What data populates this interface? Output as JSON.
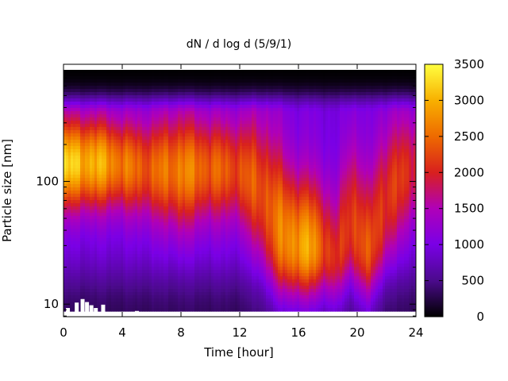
{
  "chart_data": {
    "type": "heatmap",
    "title": "dN / d log d (5/9/1)",
    "xlabel": "Time [hour]",
    "ylabel": "Particle size [nm]",
    "xlim": [
      0,
      24
    ],
    "ylim_nm": [
      7.9,
      900
    ],
    "y_scale": "log",
    "x_ticks": [
      "0",
      "4",
      "8",
      "12",
      "16",
      "20",
      "24"
    ],
    "x_tick_values": [
      0,
      4,
      8,
      12,
      16,
      20,
      24
    ],
    "y_ticks": [
      "10",
      "100"
    ],
    "y_tick_values": [
      10,
      100
    ],
    "colorbar": {
      "range": [
        0,
        3500
      ],
      "ticks": [
        "0",
        "500",
        "1000",
        "1500",
        "2000",
        "2500",
        "3000",
        "3500"
      ],
      "tick_values": [
        0,
        500,
        1000,
        1500,
        2000,
        2500,
        3000,
        3500
      ]
    },
    "colormap": [
      "#000000",
      "#4b0a8c",
      "#7a00e6",
      "#b000b8",
      "#d8201e",
      "#ee6a00",
      "#f8b000",
      "#ffff40"
    ],
    "grid": false,
    "legend": "colorbar-right",
    "profile_times_hour": [
      0,
      0.5,
      1,
      1.5,
      2,
      3,
      4,
      5,
      6,
      7,
      8,
      9,
      10,
      11,
      12,
      13,
      13.8,
      14.5,
      15.3,
      16,
      16.8,
      17.5,
      18.1,
      18.5,
      19,
      19.6,
      20.2,
      20.8,
      21.5,
      22.2,
      23,
      24
    ],
    "profiles": [
      {
        "d_nm": 140,
        "width_dec": 0.25,
        "peak": 3100,
        "bg": 950,
        "low_lift": 0
      },
      {
        "d_nm": 140,
        "width_dec": 0.26,
        "peak": 3150,
        "bg": 950,
        "low_lift": 0
      },
      {
        "d_nm": 140,
        "width_dec": 0.26,
        "peak": 3100,
        "bg": 950,
        "low_lift": 0
      },
      {
        "d_nm": 140,
        "width_dec": 0.26,
        "peak": 3050,
        "bg": 950,
        "low_lift": 0
      },
      {
        "d_nm": 140,
        "width_dec": 0.26,
        "peak": 3000,
        "bg": 950,
        "low_lift": 0
      },
      {
        "d_nm": 140,
        "width_dec": 0.26,
        "peak": 2850,
        "bg": 950,
        "low_lift": 0
      },
      {
        "d_nm": 135,
        "width_dec": 0.26,
        "peak": 2600,
        "bg": 950,
        "low_lift": 0
      },
      {
        "d_nm": 130,
        "width_dec": 0.27,
        "peak": 2450,
        "bg": 950,
        "low_lift": 0
      },
      {
        "d_nm": 125,
        "width_dec": 0.28,
        "peak": 2400,
        "bg": 1000,
        "low_lift": 0
      },
      {
        "d_nm": 125,
        "width_dec": 0.3,
        "peak": 2550,
        "bg": 1000,
        "low_lift": 0
      },
      {
        "d_nm": 120,
        "width_dec": 0.32,
        "peak": 2700,
        "bg": 1050,
        "low_lift": 0
      },
      {
        "d_nm": 125,
        "width_dec": 0.3,
        "peak": 2550,
        "bg": 1000,
        "low_lift": 0
      },
      {
        "d_nm": 125,
        "width_dec": 0.29,
        "peak": 2450,
        "bg": 1000,
        "low_lift": 0
      },
      {
        "d_nm": 125,
        "width_dec": 0.28,
        "peak": 2350,
        "bg": 1000,
        "low_lift": 0
      },
      {
        "d_nm": 120,
        "width_dec": 0.3,
        "peak": 2300,
        "bg": 1000,
        "low_lift": 0
      },
      {
        "d_nm": 100,
        "width_dec": 0.36,
        "peak": 2350,
        "bg": 1050,
        "low_lift": 100
      },
      {
        "d_nm": 70,
        "width_dec": 0.44,
        "peak": 2400,
        "bg": 1050,
        "low_lift": 250
      },
      {
        "d_nm": 45,
        "width_dec": 0.46,
        "peak": 2500,
        "bg": 1050,
        "low_lift": 450
      },
      {
        "d_nm": 33,
        "width_dec": 0.42,
        "peak": 2750,
        "bg": 1050,
        "low_lift": 600
      },
      {
        "d_nm": 30,
        "width_dec": 0.4,
        "peak": 2900,
        "bg": 1000,
        "low_lift": 650
      },
      {
        "d_nm": 28,
        "width_dec": 0.4,
        "peak": 2850,
        "bg": 1000,
        "low_lift": 550
      },
      {
        "d_nm": 27,
        "width_dec": 0.4,
        "peak": 2550,
        "bg": 1000,
        "low_lift": 450
      },
      {
        "d_nm": 24,
        "width_dec": 0.4,
        "peak": 2200,
        "bg": 950,
        "low_lift": 450
      },
      {
        "d_nm": 20,
        "width_dec": 0.42,
        "peak": 2000,
        "bg": 900,
        "low_lift": 500
      },
      {
        "d_nm": 30,
        "width_dec": 0.45,
        "peak": 2100,
        "bg": 950,
        "low_lift": 300
      },
      {
        "d_nm": 45,
        "width_dec": 0.48,
        "peak": 2300,
        "bg": 1000,
        "low_lift": 150
      },
      {
        "d_nm": 32,
        "width_dec": 0.46,
        "peak": 2350,
        "bg": 1000,
        "low_lift": 400
      },
      {
        "d_nm": 25,
        "width_dec": 0.44,
        "peak": 2250,
        "bg": 950,
        "low_lift": 450
      },
      {
        "d_nm": 45,
        "width_dec": 0.48,
        "peak": 2250,
        "bg": 1000,
        "low_lift": 150
      },
      {
        "d_nm": 80,
        "width_dec": 0.4,
        "peak": 2150,
        "bg": 1000,
        "low_lift": 50
      },
      {
        "d_nm": 110,
        "width_dec": 0.34,
        "peak": 2100,
        "bg": 1000,
        "low_lift": 0
      },
      {
        "d_nm": 130,
        "width_dec": 0.32,
        "peak": 2050,
        "bg": 1000,
        "low_lift": 0
      }
    ],
    "missing_data_bars": [
      {
        "x_hour": 0.3,
        "d_top_nm": 9.3
      },
      {
        "x_hour": 0.9,
        "d_top_nm": 10.3
      },
      {
        "x_hour": 1.3,
        "d_top_nm": 11.0
      },
      {
        "x_hour": 1.6,
        "d_top_nm": 10.4
      },
      {
        "x_hour": 1.9,
        "d_top_nm": 9.8
      },
      {
        "x_hour": 2.2,
        "d_top_nm": 9.3
      },
      {
        "x_hour": 2.7,
        "d_top_nm": 9.9
      },
      {
        "x_hour": 5.0,
        "d_top_nm": 8.8
      }
    ]
  }
}
